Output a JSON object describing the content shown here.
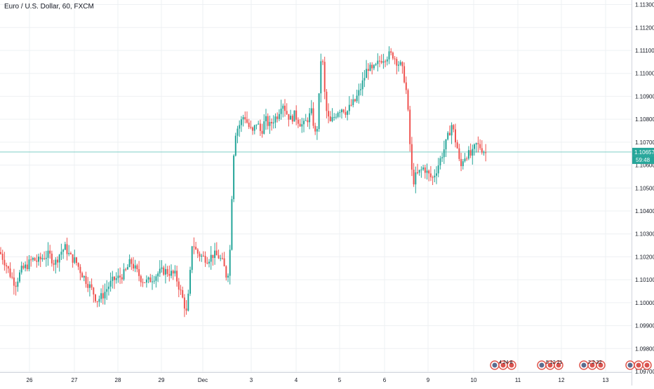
{
  "header": {
    "symbol_title": "Euro / U.S. Dollar, 60, FXCM"
  },
  "price_axis": {
    "labels": [
      "1.11300",
      "1.11200",
      "1.11100",
      "1.11000",
      "1.10900",
      "1.10800",
      "1.10700",
      "1.10600",
      "1.10500",
      "1.10400",
      "1.10300",
      "1.10200",
      "1.10100",
      "1.10000",
      "1.09900",
      "1.09800",
      "1.09700"
    ],
    "current_price": "1.10657",
    "countdown": "59:48"
  },
  "time_axis": {
    "labels": [
      "26",
      "27",
      "28",
      "29",
      "Dec",
      "3",
      "4",
      "5",
      "6",
      "9",
      "10",
      "11",
      "12",
      "13"
    ]
  },
  "events": [
    {
      "label": "4 24 8"
    },
    {
      "label": "5 12 21"
    },
    {
      "label": "2 2 32"
    },
    {
      "label": ""
    }
  ],
  "colors": {
    "up": "#26a69a",
    "down": "#ef5350",
    "price_line": "#7fcfc6",
    "grid": "#eef0f3",
    "axis_text": "#131722",
    "price_badge": "#26a69a"
  },
  "chart_data": {
    "type": "candlestick",
    "title": "Euro / U.S. Dollar, 60, FXCM",
    "xlabel": "",
    "ylabel": "",
    "ylim": [
      1.097,
      1.1132
    ],
    "grid": true,
    "current_price": 1.10657,
    "price_path": [
      [
        0,
        1.1022
      ],
      [
        8,
        1.1017
      ],
      [
        15,
        1.1012
      ],
      [
        22,
        1.1008
      ],
      [
        30,
        1.1014
      ],
      [
        38,
        1.1016
      ],
      [
        46,
        1.1019
      ],
      [
        54,
        1.1018
      ],
      [
        62,
        1.102
      ],
      [
        70,
        1.1021
      ],
      [
        78,
        1.1017
      ],
      [
        86,
        1.1022
      ],
      [
        93,
        1.1024
      ],
      [
        100,
        1.102
      ],
      [
        108,
        1.1018
      ],
      [
        116,
        1.1013
      ],
      [
        124,
        1.1009
      ],
      [
        132,
        1.1005
      ],
      [
        138,
        1.1001
      ],
      [
        146,
        1.1003
      ],
      [
        154,
        1.1007
      ],
      [
        162,
        1.101
      ],
      [
        170,
        1.1011
      ],
      [
        178,
        1.1013
      ],
      [
        186,
        1.1018
      ],
      [
        194,
        1.1014
      ],
      [
        202,
        1.101
      ],
      [
        210,
        1.1009
      ],
      [
        218,
        1.1011
      ],
      [
        226,
        1.1013
      ],
      [
        234,
        1.1014
      ],
      [
        242,
        1.1013
      ],
      [
        250,
        1.1012
      ],
      [
        256,
        1.1006
      ],
      [
        262,
        1.1
      ],
      [
        266,
        1.0995
      ],
      [
        270,
        1.1008
      ],
      [
        274,
        1.1027
      ],
      [
        280,
        1.1022
      ],
      [
        288,
        1.102
      ],
      [
        296,
        1.1019
      ],
      [
        304,
        1.1021
      ],
      [
        312,
        1.102
      ],
      [
        318,
        1.1017
      ],
      [
        324,
        1.101
      ],
      [
        328,
        1.1024
      ],
      [
        332,
        1.1062
      ],
      [
        336,
        1.1075
      ],
      [
        342,
        1.1078
      ],
      [
        348,
        1.1082
      ],
      [
        354,
        1.1077
      ],
      [
        360,
        1.1074
      ],
      [
        366,
        1.1079
      ],
      [
        372,
        1.1074
      ],
      [
        378,
        1.108
      ],
      [
        384,
        1.1077
      ],
      [
        390,
        1.108
      ],
      [
        396,
        1.1082
      ],
      [
        402,
        1.1088
      ],
      [
        408,
        1.1083
      ],
      [
        414,
        1.108
      ],
      [
        420,
        1.1082
      ],
      [
        426,
        1.1079
      ],
      [
        432,
        1.1077
      ],
      [
        438,
        1.108
      ],
      [
        444,
        1.1083
      ],
      [
        450,
        1.1072
      ],
      [
        454,
        1.1082
      ],
      [
        456,
        1.1107
      ],
      [
        460,
        1.1104
      ],
      [
        464,
        1.1085
      ],
      [
        470,
        1.1078
      ],
      [
        476,
        1.1081
      ],
      [
        482,
        1.1084
      ],
      [
        488,
        1.1085
      ],
      [
        494,
        1.1083
      ],
      [
        500,
        1.1086
      ],
      [
        506,
        1.1088
      ],
      [
        512,
        1.1092
      ],
      [
        518,
        1.1097
      ],
      [
        524,
        1.1103
      ],
      [
        530,
        1.1101
      ],
      [
        536,
        1.1103
      ],
      [
        542,
        1.1106
      ],
      [
        548,
        1.1107
      ],
      [
        554,
        1.1108
      ],
      [
        560,
        1.1108
      ],
      [
        566,
        1.1105
      ],
      [
        572,
        1.1103
      ],
      [
        576,
        1.1098
      ],
      [
        580,
        1.109
      ],
      [
        584,
        1.107
      ],
      [
        588,
        1.1052
      ],
      [
        592,
        1.1055
      ],
      [
        598,
        1.1057
      ],
      [
        604,
        1.1059
      ],
      [
        610,
        1.1056
      ],
      [
        616,
        1.1054
      ],
      [
        622,
        1.1058
      ],
      [
        628,
        1.1063
      ],
      [
        634,
        1.1068
      ],
      [
        640,
        1.1074
      ],
      [
        644,
        1.1078
      ],
      [
        648,
        1.1072
      ],
      [
        652,
        1.1067
      ],
      [
        656,
        1.1058
      ],
      [
        660,
        1.1063
      ],
      [
        666,
        1.1065
      ],
      [
        672,
        1.1064
      ],
      [
        678,
        1.1069
      ],
      [
        684,
        1.1068
      ],
      [
        690,
        1.1066
      ],
      [
        694,
        1.1065
      ]
    ]
  }
}
